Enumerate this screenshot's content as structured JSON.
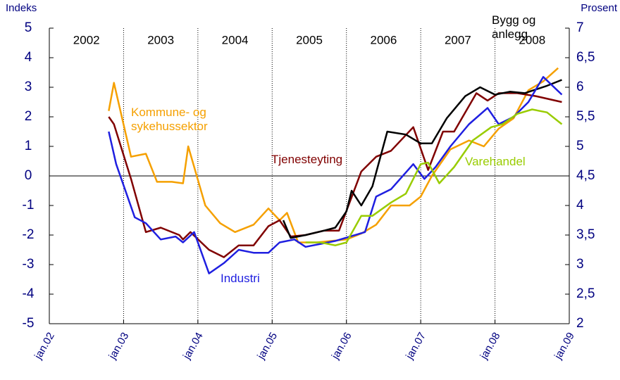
{
  "chart_data": {
    "type": "line",
    "y_label": "Indeks",
    "y2_label": "Prosent",
    "xlim": [
      2002,
      2009
    ],
    "xticks": [
      {
        "value": 2002,
        "label": "jan.02"
      },
      {
        "value": 2003,
        "label": "jan.03"
      },
      {
        "value": 2004,
        "label": "jan.04"
      },
      {
        "value": 2005,
        "label": "jan.05"
      },
      {
        "value": 2006,
        "label": "jan.06"
      },
      {
        "value": 2007,
        "label": "jan.07"
      },
      {
        "value": 2008,
        "label": "jan.08"
      },
      {
        "value": 2009,
        "label": "jan.09"
      }
    ],
    "year_labels": [
      "2002",
      "2003",
      "2004",
      "2005",
      "2006",
      "2007",
      "2008"
    ],
    "ylim": [
      -5,
      5
    ],
    "yticks": [
      -5,
      -4,
      -3,
      -2,
      -1,
      0,
      1,
      2,
      3,
      4,
      5
    ],
    "y2lim": [
      2,
      7
    ],
    "y2ticks": [
      2,
      {
        "value": 2.5,
        "label": "2,5"
      },
      3,
      {
        "value": 3.5,
        "label": "3,5"
      },
      4,
      {
        "value": 4.5,
        "label": "4,5"
      },
      5,
      {
        "value": 5.5,
        "label": "5,5"
      },
      6,
      {
        "value": 6.5,
        "label": "6,5"
      },
      7
    ],
    "series": [
      {
        "name": "Kommune- og sykehussektor",
        "color": "#f5a000",
        "x": [
          2002.8,
          2002.87,
          2003.1,
          2003.3,
          2003.45,
          2003.65,
          2003.8,
          2003.87,
          2004.1,
          2004.3,
          2004.5,
          2004.75,
          2004.95,
          2005.1,
          2005.2,
          2005.35,
          2005.6,
          2005.8,
          2006.0,
          2006.2,
          2006.4,
          2006.6,
          2006.85,
          2007.0,
          2007.15,
          2007.4,
          2007.65,
          2007.85,
          2008.05,
          2008.25,
          2008.45,
          2008.65,
          2008.85
        ],
        "values": [
          2.2,
          3.15,
          0.65,
          0.75,
          -0.2,
          -0.2,
          -0.25,
          1.0,
          -1.0,
          -1.6,
          -1.9,
          -1.65,
          -1.1,
          -1.5,
          -1.25,
          -2.25,
          -2.25,
          -2.2,
          -2.15,
          -1.95,
          -1.65,
          -1.0,
          -1.0,
          -0.7,
          0.0,
          0.9,
          1.2,
          1.0,
          1.6,
          1.95,
          2.9,
          3.2,
          3.65
        ]
      },
      {
        "name": "Tjenesteyting",
        "color": "#800000",
        "x": [
          2002.8,
          2002.87,
          2003.1,
          2003.3,
          2003.5,
          2003.75,
          2003.8,
          2003.9,
          2004.15,
          2004.35,
          2004.55,
          2004.75,
          2004.95,
          2005.1,
          2005.25,
          2005.45,
          2005.7,
          2005.9,
          2006.2,
          2006.4,
          2006.6,
          2006.9,
          2007.1,
          2007.3,
          2007.45,
          2007.75,
          2007.9,
          2008.05,
          2008.3,
          2008.55,
          2008.9
        ],
        "values": [
          2.0,
          1.75,
          -0.1,
          -1.9,
          -1.75,
          -2.0,
          -2.15,
          -1.9,
          -2.5,
          -2.75,
          -2.35,
          -2.35,
          -1.7,
          -1.5,
          -2.05,
          -2.0,
          -1.85,
          -1.85,
          0.15,
          0.65,
          0.85,
          1.65,
          0.2,
          1.5,
          1.5,
          2.8,
          2.55,
          2.8,
          2.8,
          2.7,
          2.5
        ]
      },
      {
        "name": "Bygg og anlegg",
        "color": "#000000",
        "x": [
          2005.15,
          2005.25,
          2005.45,
          2005.7,
          2005.85,
          2006.0,
          2006.07,
          2006.2,
          2006.35,
          2006.55,
          2006.8,
          2007.0,
          2007.15,
          2007.35,
          2007.6,
          2007.8,
          2008.0,
          2008.2,
          2008.4,
          2008.7,
          2008.9
        ],
        "values": [
          -1.5,
          -2.1,
          -2.0,
          -1.85,
          -1.75,
          -1.2,
          -0.5,
          -1.0,
          -0.35,
          1.5,
          1.4,
          1.1,
          1.1,
          1.95,
          2.7,
          3.0,
          2.75,
          2.85,
          2.8,
          3.05,
          3.25
        ]
      },
      {
        "name": "Industri",
        "color": "#1f1fe0",
        "x": [
          2002.8,
          2002.9,
          2003.15,
          2003.3,
          2003.5,
          2003.7,
          2003.8,
          2003.95,
          2004.15,
          2004.35,
          2004.55,
          2004.75,
          2004.95,
          2005.1,
          2005.3,
          2005.45,
          2005.65,
          2005.85,
          2006.05,
          2006.25,
          2006.4,
          2006.6,
          2006.9,
          2007.05,
          2007.2,
          2007.4,
          2007.65,
          2007.9,
          2008.05,
          2008.25,
          2008.45,
          2008.65,
          2008.9
        ],
        "values": [
          1.5,
          0.4,
          -1.4,
          -1.6,
          -2.15,
          -2.05,
          -2.25,
          -1.9,
          -3.3,
          -2.95,
          -2.5,
          -2.6,
          -2.6,
          -2.25,
          -2.15,
          -2.4,
          -2.3,
          -2.2,
          -2.05,
          -1.9,
          -0.7,
          -0.45,
          0.4,
          -0.1,
          0.3,
          1.0,
          1.75,
          2.3,
          1.75,
          2.0,
          2.5,
          3.35,
          2.75
        ]
      },
      {
        "name": "Varehandel",
        "color": "#99cc00",
        "x": [
          2005.45,
          2005.65,
          2005.85,
          2006.0,
          2006.2,
          2006.35,
          2006.6,
          2006.8,
          2007.0,
          2007.1,
          2007.25,
          2007.45,
          2007.7,
          2007.95,
          2008.1,
          2008.3,
          2008.5,
          2008.7,
          2008.9
        ],
        "values": [
          -2.25,
          -2.25,
          -2.35,
          -2.25,
          -1.35,
          -1.35,
          -0.9,
          -0.6,
          0.4,
          0.45,
          -0.25,
          0.3,
          1.2,
          1.65,
          1.75,
          2.1,
          2.25,
          2.15,
          1.75
        ]
      }
    ]
  }
}
